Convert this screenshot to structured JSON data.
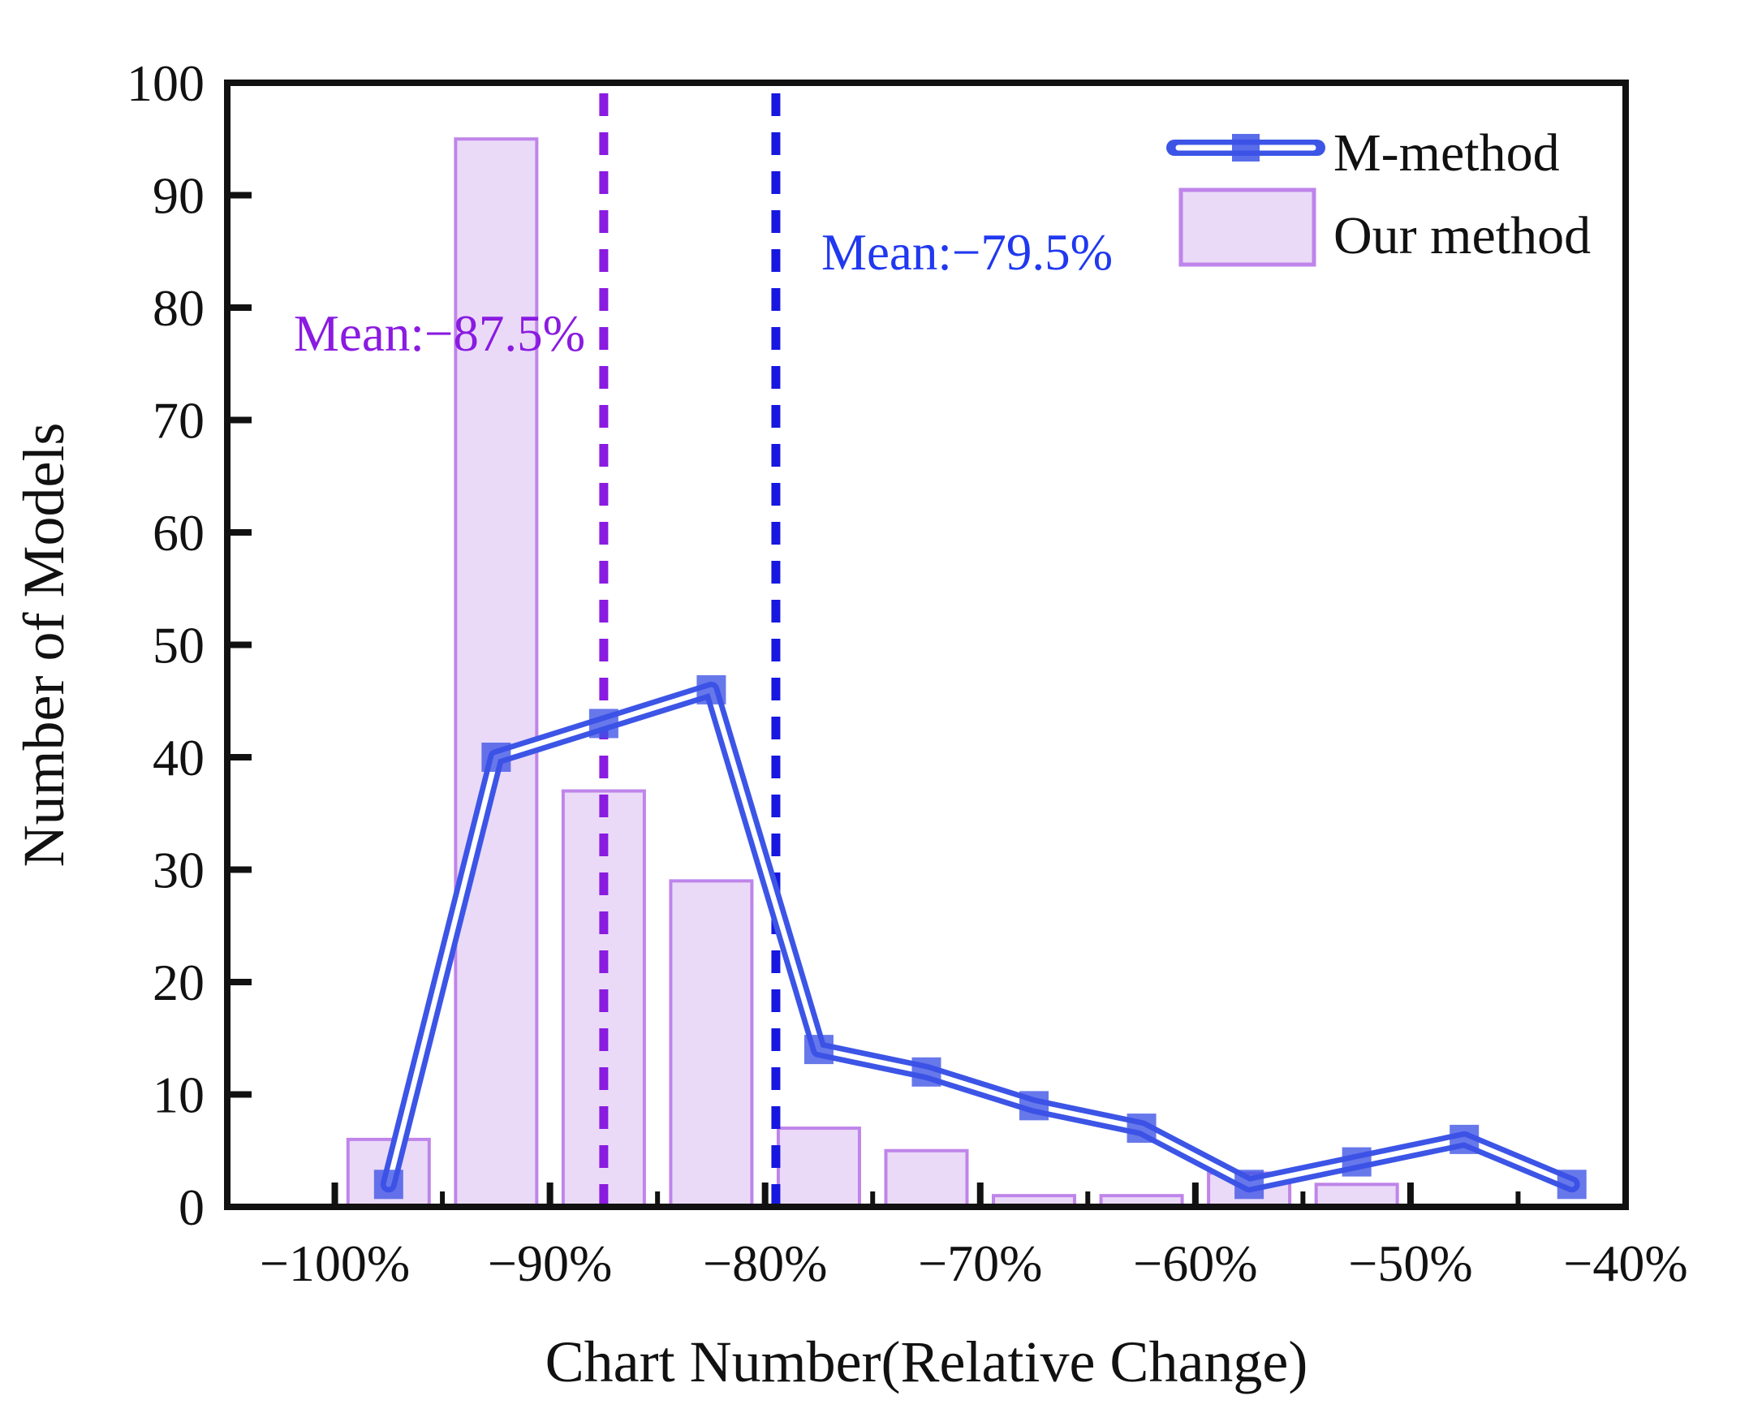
{
  "figure": {
    "background": "#ffffff",
    "frame_color": "#111111"
  },
  "chart_data": {
    "type": "bar",
    "title": "",
    "xlabel": "Chart Number(Relative Change)",
    "ylabel": "Number of Models",
    "xlim": [
      -105,
      -40
    ],
    "ylim": [
      0,
      100
    ],
    "x_major_ticks": [
      -100,
      -90,
      -80,
      -70,
      -60,
      -50,
      -40
    ],
    "x_major_tick_labels": [
      "−100%",
      "−90%",
      "−80%",
      "−70%",
      "−60%",
      "−50%",
      "−40%"
    ],
    "x_minor_ticks": [
      -95,
      -85,
      -75,
      -65,
      -55,
      -45
    ],
    "y_ticks": [
      0,
      10,
      20,
      30,
      40,
      50,
      60,
      70,
      80,
      90,
      100
    ],
    "bin_width_pct": 5,
    "categories": [
      -97.5,
      -92.5,
      -87.5,
      -82.5,
      -77.5,
      -72.5,
      -67.5,
      -62.5,
      -57.5,
      -52.5,
      -47.5,
      -42.5
    ],
    "series": [
      {
        "name": "M-method",
        "type": "line",
        "values": [
          2,
          40,
          43,
          46,
          14,
          12,
          9,
          7,
          2,
          4,
          6,
          2
        ],
        "color": "#3c55e6",
        "core_color": "#ffffff",
        "marker": "square",
        "marker_color": "#3c52e6"
      },
      {
        "name": "Our method",
        "type": "bar",
        "values": [
          6,
          95,
          37,
          29,
          7,
          5,
          1,
          1,
          3,
          2,
          0,
          0
        ],
        "fill": "#eadaf7",
        "edge": "#bf85ea"
      }
    ],
    "mean_lines": [
      {
        "series": "Our method",
        "label": "Mean:−87.5%",
        "value": -87.5,
        "line_color": "#8a1be0",
        "text_color": "#8a1be0"
      },
      {
        "series": "M-method",
        "label": "Mean:−79.5%",
        "value": -79.5,
        "line_color": "#1717e0",
        "text_color": "#2038ef"
      }
    ],
    "legend": {
      "position": "top-right",
      "entries": [
        "M-method",
        "Our method"
      ]
    },
    "grid": false
  }
}
